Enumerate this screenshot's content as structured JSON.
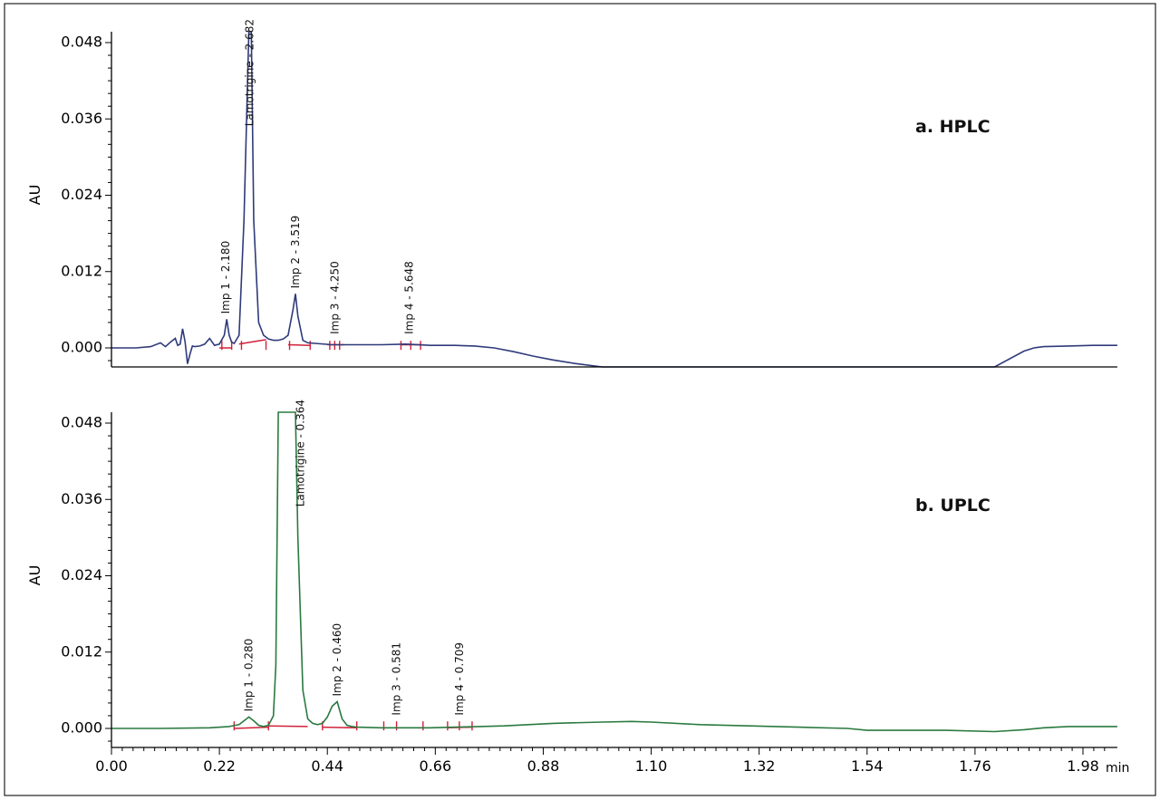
{
  "chart_data": [
    {
      "type": "line",
      "title": "a. HPLC",
      "ylabel": "AU",
      "xlabel": "",
      "x_unit": "min",
      "xlim": [
        0.0,
        2.05
      ],
      "ylim": [
        -0.003,
        0.05
      ],
      "y_ticks": [
        "0.000",
        "0.012",
        "0.024",
        "0.036",
        "0.048"
      ],
      "color": "#2f3a7a",
      "baseline_color": "#d0213a",
      "series": [
        {
          "x": [
            0.0,
            0.05,
            0.08,
            0.1,
            0.11,
            0.12,
            0.13,
            0.135,
            0.14,
            0.145,
            0.15,
            0.155,
            0.16,
            0.165,
            0.17,
            0.18,
            0.19,
            0.2,
            0.21,
            0.22,
            0.23,
            0.235,
            0.24,
            0.245,
            0.25,
            0.26,
            0.27,
            0.28,
            0.285,
            0.29,
            0.3,
            0.31,
            0.32,
            0.33,
            0.34,
            0.35,
            0.36,
            0.37,
            0.375,
            0.38,
            0.39,
            0.4,
            0.45,
            0.5,
            0.55,
            0.6,
            0.65,
            0.7,
            0.74,
            0.78,
            0.82,
            0.86,
            0.9,
            0.95,
            1.0,
            1.03,
            1.05,
            1.8,
            1.86,
            1.88,
            1.9,
            1.95,
            2.0,
            2.05
          ],
          "y": [
            0.0,
            0.0,
            0.0002,
            0.0008,
            0.0002,
            0.0009,
            0.0015,
            0.0004,
            0.0006,
            0.003,
            0.001,
            -0.0025,
            -0.001,
            0.0003,
            0.0002,
            0.0003,
            0.0006,
            0.0015,
            0.0004,
            0.0006,
            0.002,
            0.0045,
            0.002,
            0.0009,
            0.0007,
            0.002,
            0.02,
            0.055,
            0.055,
            0.02,
            0.004,
            0.002,
            0.0014,
            0.0012,
            0.0012,
            0.0014,
            0.002,
            0.006,
            0.0085,
            0.005,
            0.0012,
            0.0008,
            0.0005,
            0.0005,
            0.0005,
            0.0006,
            0.0004,
            0.0004,
            0.0003,
            0.0,
            -0.0006,
            -0.0013,
            -0.0019,
            -0.0025,
            -0.003,
            -0.003,
            -0.003,
            -0.003,
            -0.0005,
            0.0,
            0.0002,
            0.0003,
            0.0004,
            0.0004
          ]
        }
      ],
      "peaks": [
        {
          "label": "Imp 1 - 2.180",
          "x": 0.233,
          "y": 0.0045
        },
        {
          "label": "Lamotrigine - 2.682",
          "x": 0.282,
          "y": 0.034
        },
        {
          "label": "Imp 2 - 3.519",
          "x": 0.375,
          "y": 0.0085
        },
        {
          "label": "Imp 3 - 4.250",
          "x": 0.455,
          "y": 0.0013
        },
        {
          "label": "Imp 4 - 5.648",
          "x": 0.607,
          "y": 0.0013
        }
      ],
      "baseline_segments": [
        {
          "x": [
            0.22,
            0.245
          ],
          "y": [
            0.0,
            0.0
          ]
        },
        {
          "x": [
            0.26,
            0.315
          ],
          "y": [
            0.0006,
            0.0013
          ]
        },
        {
          "x": [
            0.36,
            0.405
          ],
          "y": [
            0.0005,
            0.0004
          ]
        },
        {
          "x": [
            0.44,
            0.475
          ],
          "y": [
            0.0005,
            0.0005
          ]
        },
        {
          "x": [
            0.59,
            0.63
          ],
          "y": [
            0.0005,
            0.0005
          ]
        }
      ],
      "baseline_marks": [
        0.225,
        0.245,
        0.265,
        0.315,
        0.363,
        0.405,
        0.445,
        0.455,
        0.465,
        0.59,
        0.61,
        0.63
      ]
    },
    {
      "type": "line",
      "title": "b. UPLC",
      "ylabel": "AU",
      "xlabel": "",
      "x_unit": "min",
      "xlim": [
        0.0,
        2.05
      ],
      "ylim": [
        -0.001,
        0.05
      ],
      "y_ticks": [
        "0.000",
        "0.012",
        "0.024",
        "0.036",
        "0.048"
      ],
      "x_ticks": [
        "0.00",
        "0.22",
        "0.44",
        "0.66",
        "0.88",
        "1.10",
        "1.32",
        "1.54",
        "1.76",
        "1.98"
      ],
      "color": "#2a7a3f",
      "baseline_color": "#d0213a",
      "series": [
        {
          "x": [
            0.0,
            0.1,
            0.2,
            0.24,
            0.26,
            0.27,
            0.28,
            0.29,
            0.3,
            0.31,
            0.32,
            0.33,
            0.335,
            0.34,
            0.345,
            0.35,
            0.36,
            0.37,
            0.375,
            0.38,
            0.39,
            0.4,
            0.41,
            0.42,
            0.43,
            0.44,
            0.45,
            0.46,
            0.47,
            0.48,
            0.49,
            0.5,
            0.55,
            0.6,
            0.65,
            0.7,
            0.75,
            0.8,
            0.85,
            0.9,
            1.0,
            1.06,
            1.1,
            1.2,
            1.3,
            1.4,
            1.5,
            1.54,
            1.6,
            1.7,
            1.8,
            1.86,
            1.9,
            1.95,
            2.0,
            2.05
          ],
          "y": [
            0.0,
            0.0,
            0.0001,
            0.0003,
            0.0006,
            0.0012,
            0.0018,
            0.0012,
            0.0005,
            0.0003,
            0.0005,
            0.002,
            0.01,
            0.055,
            0.055,
            0.055,
            0.055,
            0.055,
            0.055,
            0.03,
            0.006,
            0.0015,
            0.0008,
            0.0006,
            0.0008,
            0.0018,
            0.0035,
            0.0042,
            0.0015,
            0.0005,
            0.0003,
            0.0002,
            0.0001,
            0.0001,
            0.0001,
            0.0002,
            0.0003,
            0.0004,
            0.0006,
            0.0008,
            0.001,
            0.0011,
            0.001,
            0.0006,
            0.0004,
            0.0002,
            0.0,
            -0.0003,
            -0.0003,
            -0.0003,
            -0.0005,
            -0.0002,
            0.0001,
            0.0003,
            0.0003,
            0.0003
          ]
        }
      ],
      "peaks": [
        {
          "label": "Imp 1 - 0.280",
          "x": 0.28,
          "y": 0.0018
        },
        {
          "label": "Lamotrigine - 0.364",
          "x": 0.385,
          "y": 0.034
        },
        {
          "label": "Imp 2 - 0.460",
          "x": 0.46,
          "y": 0.0042
        },
        {
          "label": "Imp 3 - 0.581",
          "x": 0.581,
          "y": 0.0012
        },
        {
          "label": "Imp 4 - 0.709",
          "x": 0.709,
          "y": 0.0012
        }
      ],
      "baseline_segments": [
        {
          "x": [
            0.25,
            0.32
          ],
          "y": [
            0.0,
            0.0002
          ]
        },
        {
          "x": [
            0.32,
            0.4
          ],
          "y": [
            0.0004,
            0.0003
          ]
        },
        {
          "x": [
            0.43,
            0.5
          ],
          "y": [
            0.0002,
            0.0001
          ]
        },
        {
          "x": [
            0.555,
            0.635
          ],
          "y": [
            0.0001,
            0.0001
          ]
        },
        {
          "x": [
            0.685,
            0.735
          ],
          "y": [
            0.0001,
            0.0002
          ]
        }
      ],
      "baseline_marks": [
        0.25,
        0.32,
        0.43,
        0.5,
        0.555,
        0.581,
        0.635,
        0.685,
        0.709,
        0.735
      ]
    }
  ]
}
